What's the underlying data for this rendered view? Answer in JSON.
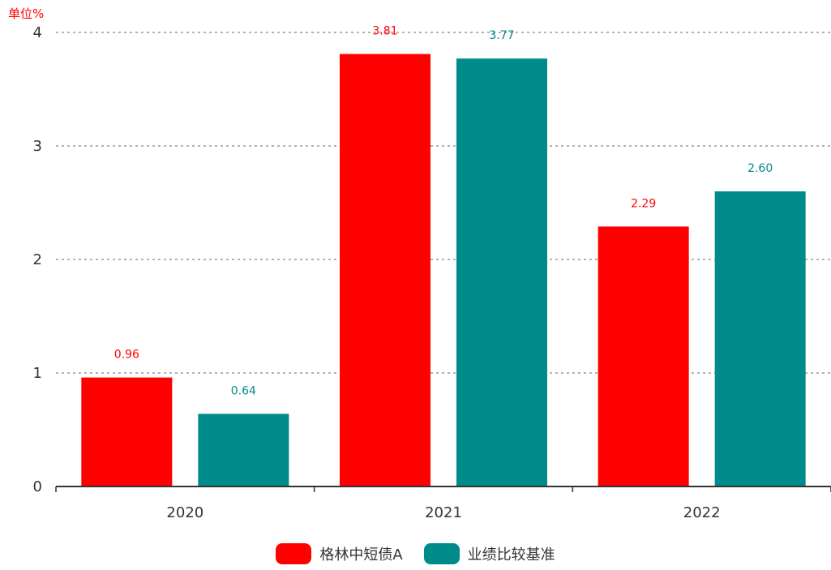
{
  "chart_data": {
    "type": "bar",
    "unit_label": "单位%",
    "categories": [
      "2020",
      "2021",
      "2022"
    ],
    "series": [
      {
        "name": "格林中短债A",
        "color": "#ff0000",
        "values": [
          0.96,
          3.81,
          2.29
        ],
        "labels": [
          "0.96",
          "3.81",
          "2.29"
        ]
      },
      {
        "name": "业绩比较基准",
        "color": "#008b8b",
        "values": [
          0.64,
          3.77,
          2.6
        ],
        "labels": [
          "0.64",
          "3.77",
          "2.60"
        ]
      }
    ],
    "ylim": [
      0,
      4
    ],
    "yticks": [
      "0",
      "1",
      "2",
      "3",
      "4"
    ],
    "grid": true,
    "grid_style": "dotted",
    "legend_position": "bottom-center",
    "unit_label_color": "#ff0000",
    "axis_color": "#333333"
  }
}
